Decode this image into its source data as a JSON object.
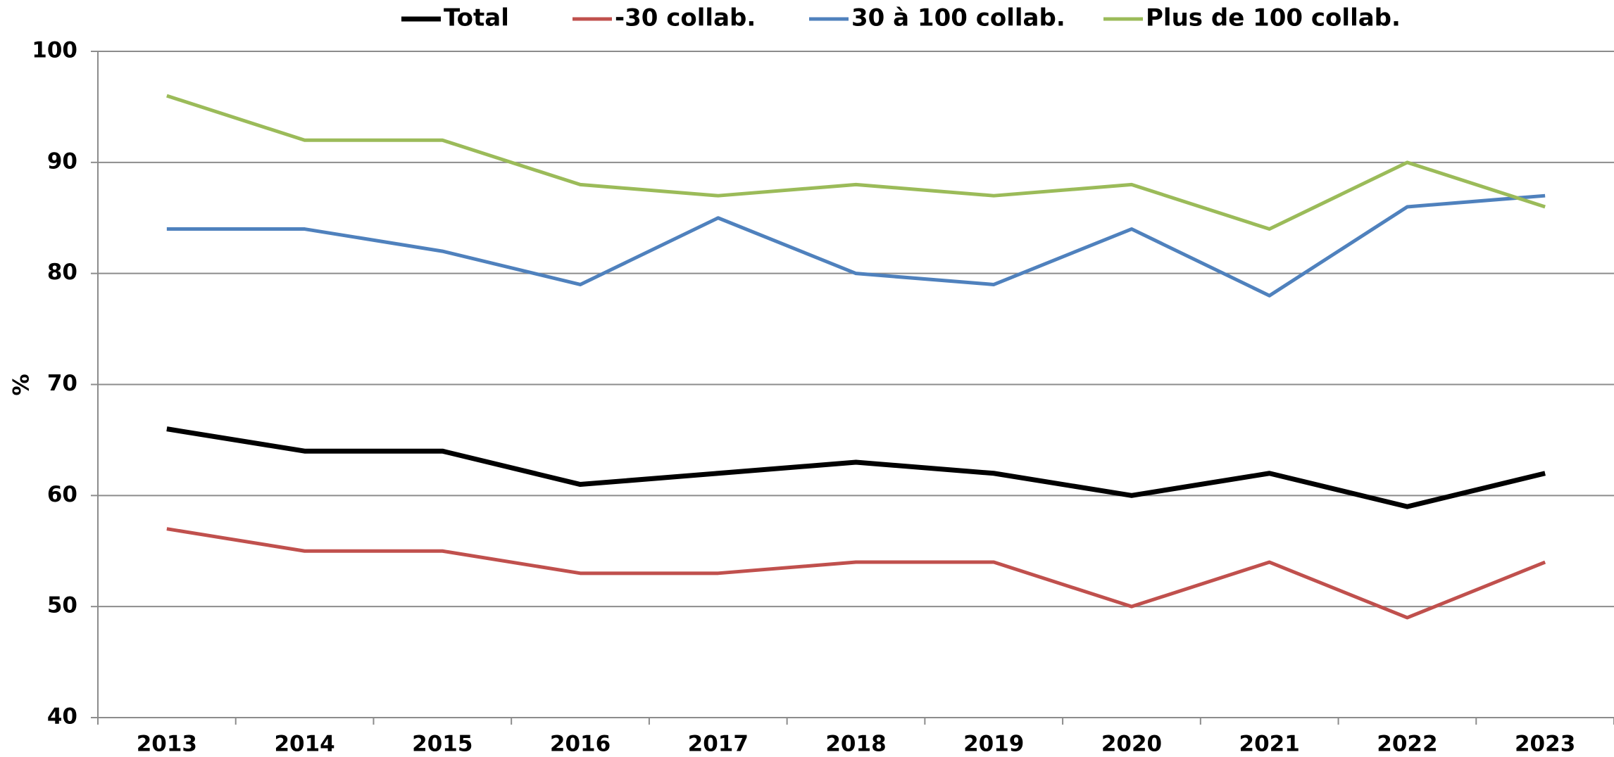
{
  "chart_data": {
    "type": "line",
    "y_label": "%",
    "categories": [
      "2013",
      "2014",
      "2015",
      "2016",
      "2017",
      "2018",
      "2019",
      "2020",
      "2021",
      "2022",
      "2023"
    ],
    "series": [
      {
        "name": "Total",
        "color": "#000000",
        "values": [
          66,
          64,
          64,
          61,
          62,
          63,
          62,
          60,
          62,
          59,
          62
        ]
      },
      {
        "name": "-30 collab.",
        "color": "#c0504d",
        "values": [
          57,
          55,
          55,
          53,
          53,
          54,
          54,
          50,
          54,
          49,
          54
        ]
      },
      {
        "name": "30 à 100 collab.",
        "color": "#4f81bd",
        "values": [
          84,
          84,
          82,
          79,
          85,
          80,
          79,
          84,
          78,
          86,
          87
        ]
      },
      {
        "name": "Plus de 100 collab.",
        "color": "#9bbb59",
        "values": [
          96,
          92,
          92,
          88,
          87,
          88,
          87,
          88,
          84,
          90,
          86
        ]
      }
    ],
    "ylim": [
      40,
      100
    ],
    "yticks": [
      40,
      50,
      60,
      70,
      80,
      90,
      100
    ],
    "grid": true,
    "legend": "top"
  }
}
